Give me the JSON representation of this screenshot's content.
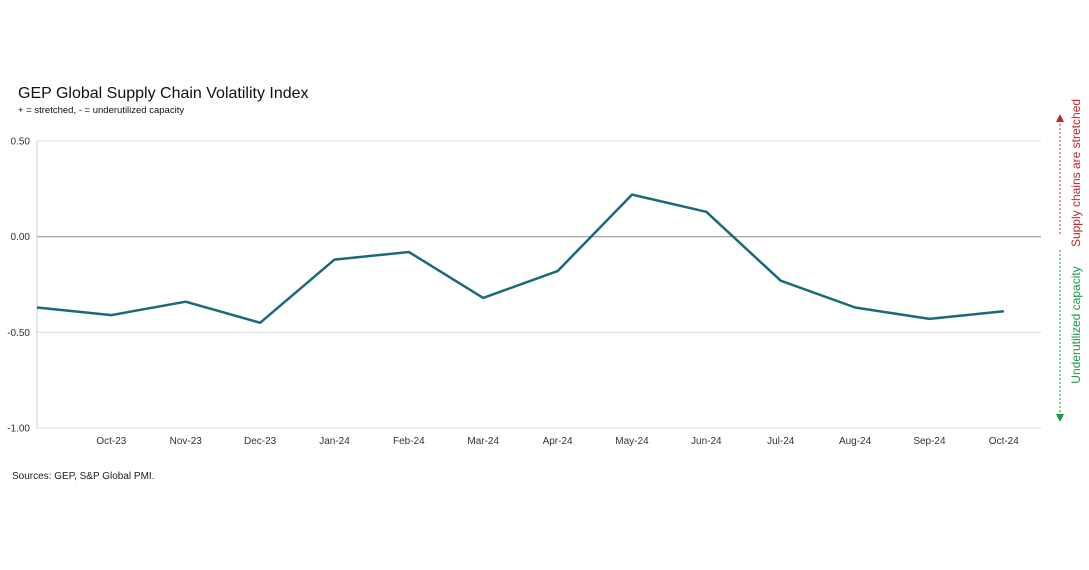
{
  "chart_data": {
    "type": "line",
    "title": "GEP Global Supply Chain Volatility Index",
    "subtitle": "+ = stretched, - = underutilized capacity",
    "source": "Sources: GEP, S&P Global PMI.",
    "categories": [
      "Oct-23",
      "Nov-23",
      "Dec-23",
      "Jan-24",
      "Feb-24",
      "Mar-24",
      "Apr-24",
      "May-24",
      "Jun-24",
      "Jul-24",
      "Aug-24",
      "Sep-24",
      "Oct-24"
    ],
    "series": [
      {
        "x": [
          "",
          "Oct-23",
          "Nov-23",
          "Dec-23",
          "Jan-24",
          "Feb-24",
          "Mar-24",
          "Apr-24",
          "May-24",
          "Jun-24",
          "Jul-24",
          "Aug-24",
          "Sep-24",
          "Oct-24"
        ],
        "values": [
          -0.37,
          -0.41,
          -0.34,
          -0.45,
          -0.12,
          -0.08,
          -0.32,
          -0.18,
          0.22,
          0.13,
          -0.23,
          -0.37,
          -0.43,
          -0.39
        ],
        "color": "#1a6a7a"
      }
    ],
    "yticks": [
      "0.50",
      "0.00",
      "-0.50",
      "-1.00"
    ],
    "ytick_values": [
      0.5,
      0.0,
      -0.5,
      -1.0
    ],
    "ylim": [
      -1.0,
      0.5
    ],
    "grid": true,
    "annotations": {
      "upper": {
        "text": "Supply chains are stretched",
        "color": "#c0282d"
      },
      "lower": {
        "text": "Underutilized capacity",
        "color": "#1a9a4a"
      }
    },
    "zero_line_color": "#999999",
    "grid_color": "#dddddd"
  }
}
